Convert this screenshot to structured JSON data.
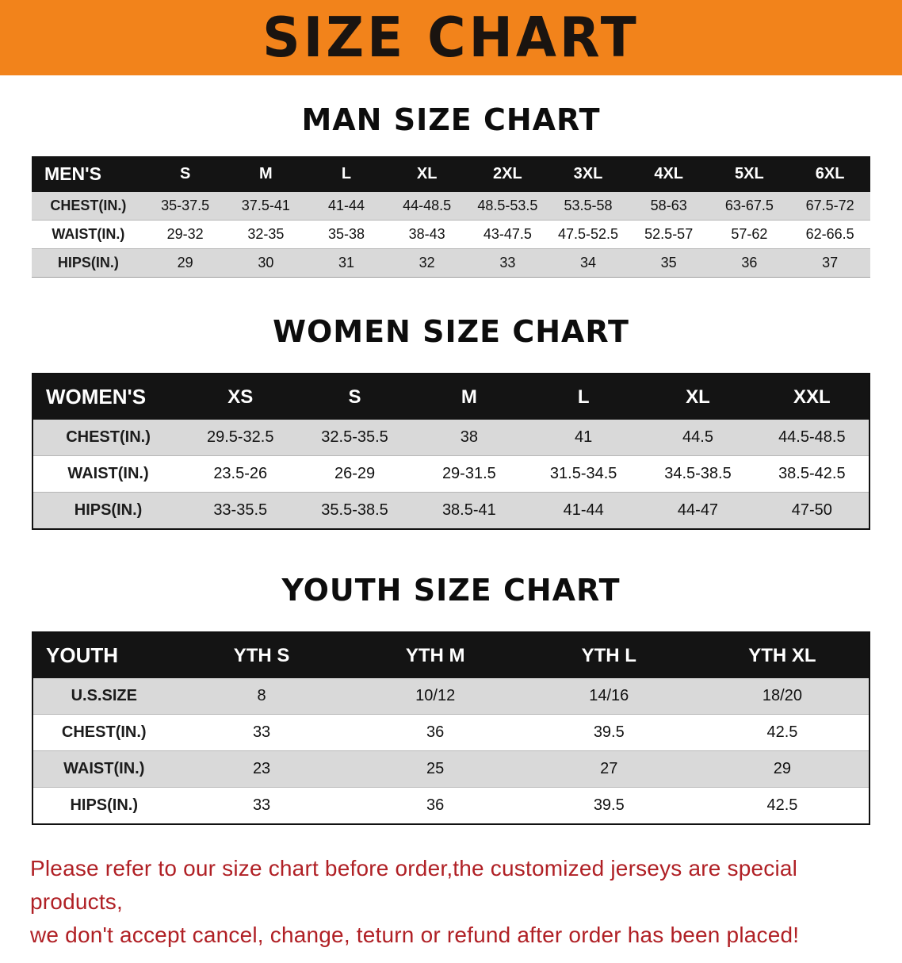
{
  "banner": {
    "title": "SIZE CHART",
    "bg_color": "#F2831B",
    "text_color": "#1a1410"
  },
  "sections": [
    {
      "heading": "MAN SIZE CHART",
      "table": {
        "name": "mens-size-table",
        "header_label": "MEN'S",
        "columns": [
          "S",
          "M",
          "L",
          "XL",
          "2XL",
          "3XL",
          "4XL",
          "5XL",
          "6XL"
        ],
        "rows": [
          {
            "label": "CHEST(IN.)",
            "values": [
              "35-37.5",
              "37.5-41",
              "41-44",
              "44-48.5",
              "48.5-53.5",
              "53.5-58",
              "58-63",
              "63-67.5",
              "67.5-72"
            ]
          },
          {
            "label": "WAIST(IN.)",
            "values": [
              "29-32",
              "32-35",
              "35-38",
              "38-43",
              "43-47.5",
              "47.5-52.5",
              "52.5-57",
              "57-62",
              "62-66.5"
            ]
          },
          {
            "label": "HIPS(IN.)",
            "values": [
              "29",
              "30",
              "31",
              "32",
              "33",
              "34",
              "35",
              "36",
              "37"
            ]
          }
        ]
      }
    },
    {
      "heading": "WOMEN SIZE CHART",
      "table": {
        "name": "womens-size-table",
        "header_label": "WOMEN'S",
        "columns": [
          "XS",
          "S",
          "M",
          "L",
          "XL",
          "XXL"
        ],
        "rows": [
          {
            "label": "CHEST(IN.)",
            "values": [
              "29.5-32.5",
              "32.5-35.5",
              "38",
              "41",
              "44.5",
              "44.5-48.5"
            ]
          },
          {
            "label": "WAIST(IN.)",
            "values": [
              "23.5-26",
              "26-29",
              "29-31.5",
              "31.5-34.5",
              "34.5-38.5",
              "38.5-42.5"
            ]
          },
          {
            "label": "HIPS(IN.)",
            "values": [
              "33-35.5",
              "35.5-38.5",
              "38.5-41",
              "41-44",
              "44-47",
              "47-50"
            ]
          }
        ]
      }
    },
    {
      "heading": "YOUTH SIZE CHART",
      "table": {
        "name": "youth-size-table",
        "header_label": "YOUTH",
        "columns": [
          "YTH S",
          "YTH M",
          "YTH L",
          "YTH XL"
        ],
        "rows": [
          {
            "label": "U.S.SIZE",
            "values": [
              "8",
              "10/12",
              "14/16",
              "18/20"
            ]
          },
          {
            "label": "CHEST(IN.)",
            "values": [
              "33",
              "36",
              "39.5",
              "42.5"
            ]
          },
          {
            "label": "WAIST(IN.)",
            "values": [
              "23",
              "25",
              "27",
              "29"
            ]
          },
          {
            "label": "HIPS(IN.)",
            "values": [
              "33",
              "36",
              "39.5",
              "42.5"
            ]
          }
        ]
      }
    }
  ],
  "footer": {
    "text_color": "#B02025",
    "lines": [
      "Please refer to our size chart before order,the customized jerseys are special products,",
      "we don't accept cancel, change, teturn or refund after order has been placed!"
    ]
  }
}
